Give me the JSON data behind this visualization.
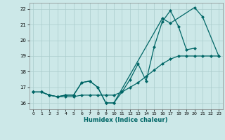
{
  "xlabel": "Humidex (Indice chaleur)",
  "bg_color": "#cce8e8",
  "grid_color": "#aacccc",
  "line_color": "#006666",
  "xlim": [
    -0.5,
    23.5
  ],
  "ylim": [
    15.6,
    22.4
  ],
  "yticks": [
    16,
    17,
    18,
    19,
    20,
    21,
    22
  ],
  "xticks": [
    0,
    1,
    2,
    3,
    4,
    5,
    6,
    7,
    8,
    9,
    10,
    11,
    12,
    13,
    14,
    15,
    16,
    17,
    18,
    19,
    20,
    21,
    22,
    23
  ],
  "line1_x": [
    0,
    1,
    2,
    3,
    4,
    5,
    6,
    7,
    8,
    9,
    10,
    11,
    12,
    13,
    14,
    15,
    16,
    17,
    18,
    19,
    20
  ],
  "line1_y": [
    16.7,
    16.7,
    16.5,
    16.4,
    16.5,
    16.5,
    17.3,
    17.4,
    17.0,
    16.0,
    16.0,
    16.7,
    17.5,
    18.5,
    17.4,
    19.6,
    21.2,
    21.9,
    20.9,
    19.4,
    19.5
  ],
  "line2_x": [
    0,
    1,
    2,
    3,
    4,
    5,
    6,
    7,
    8,
    9,
    10,
    16,
    17,
    20,
    21,
    23
  ],
  "line2_y": [
    16.7,
    16.7,
    16.5,
    16.4,
    16.5,
    16.5,
    17.3,
    17.4,
    17.0,
    16.0,
    16.0,
    21.4,
    21.1,
    22.1,
    21.5,
    19.0
  ],
  "line3_x": [
    0,
    1,
    2,
    3,
    4,
    5,
    6,
    7,
    8,
    9,
    10,
    11,
    12,
    13,
    14,
    15,
    16,
    17,
    18,
    19,
    20,
    21,
    22,
    23
  ],
  "line3_y": [
    16.7,
    16.7,
    16.5,
    16.4,
    16.4,
    16.4,
    16.5,
    16.5,
    16.5,
    16.5,
    16.5,
    16.7,
    17.0,
    17.3,
    17.7,
    18.1,
    18.5,
    18.8,
    19.0,
    19.0,
    19.0,
    19.0,
    19.0,
    19.0
  ]
}
